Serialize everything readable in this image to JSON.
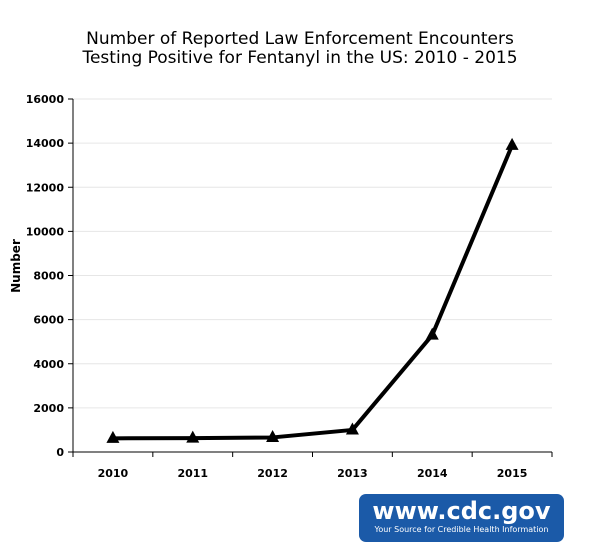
{
  "chart_data": {
    "type": "line",
    "title_lines": [
      "Number of Reported Law Enforcement Encounters",
      "Testing Positive for Fentanyl in the US: 2010 - 2015"
    ],
    "xlabel": "",
    "ylabel": "Number",
    "categories": [
      "2010",
      "2011",
      "2012",
      "2013",
      "2014",
      "2015"
    ],
    "series": [
      {
        "values": [
          620,
          630,
          660,
          1000,
          5300,
          13900
        ],
        "marker": "triangle",
        "color": "#000000"
      }
    ],
    "ylim": [
      0,
      16000
    ],
    "yticks": [
      0,
      2000,
      4000,
      6000,
      8000,
      10000,
      12000,
      14000,
      16000
    ],
    "ytick_labels": [
      "0",
      "2000",
      "4000",
      "6000",
      "8000",
      "10000",
      "12000",
      "14000",
      "16000"
    ],
    "grid": true,
    "grid_color": "#e6e6e6",
    "line_color": "#000000"
  },
  "branding": {
    "site": "www.cdc.gov",
    "tagline": "Your Source for Credible Health Information",
    "color": "#1b5aa8"
  }
}
